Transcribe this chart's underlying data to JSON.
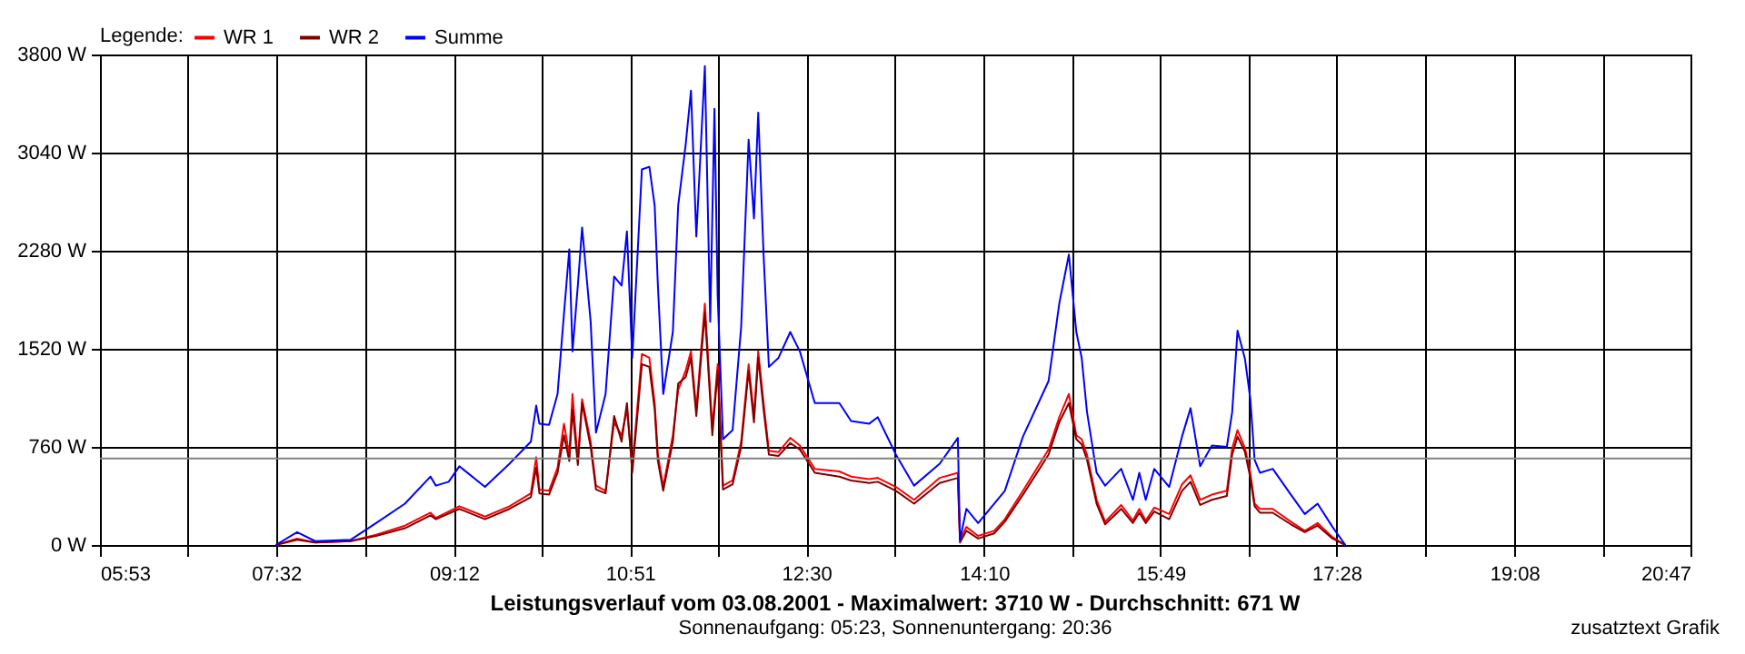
{
  "chart_data": {
    "type": "line",
    "title": "Leistungsverlauf vom 03.08.2001 - Maximalwert: 3710 W - Durchschnitt: 671 W",
    "subtitle": "Sonnenaufgang: 05:23, Sonnenuntergang: 20:36",
    "legend_title": "Legende:",
    "legend": "top left",
    "grid": true,
    "marker": "none",
    "line_style": "solid",
    "annotations": [
      "zusatztext Grafik"
    ],
    "xlim": [
      5.8833,
      20.7833
    ],
    "xticks": [
      {
        "value": 5.8833,
        "label": "05:53"
      },
      {
        "value": 6.7083,
        "label": null
      },
      {
        "value": 7.5333,
        "label": "07:32"
      },
      {
        "value": 8.3667,
        "label": null
      },
      {
        "value": 9.2,
        "label": "09:12"
      },
      {
        "value": 10.025,
        "label": null
      },
      {
        "value": 10.85,
        "label": "10:51"
      },
      {
        "value": 11.675,
        "label": null
      },
      {
        "value": 12.5,
        "label": "12:30"
      },
      {
        "value": 13.3333,
        "label": null
      },
      {
        "value": 14.1667,
        "label": "14:10"
      },
      {
        "value": 14.9917,
        "label": null
      },
      {
        "value": 15.8167,
        "label": "15:49"
      },
      {
        "value": 16.6417,
        "label": null
      },
      {
        "value": 17.4667,
        "label": "17:28"
      },
      {
        "value": 18.3,
        "label": null
      },
      {
        "value": 19.1333,
        "label": "19:08"
      },
      {
        "value": 19.9583,
        "label": null
      },
      {
        "value": 20.7833,
        "label": "20:47"
      }
    ],
    "ylim": [
      0,
      3800
    ],
    "yticks": [
      {
        "value": 0,
        "label": "0 W"
      },
      {
        "value": 760,
        "label": "760 W"
      },
      {
        "value": 1520,
        "label": "1520 W"
      },
      {
        "value": 2280,
        "label": "2280 W"
      },
      {
        "value": 3040,
        "label": "3040 W"
      },
      {
        "value": 3800,
        "label": "3800 W"
      }
    ],
    "ref_lines": [
      {
        "axis": "y",
        "value": 671,
        "color": "#808080"
      }
    ],
    "series": [
      {
        "name": "WR 1",
        "color": "#ff0000",
        "x": [
          7.53,
          7.73,
          7.9,
          8.23,
          8.47,
          8.74,
          8.98,
          9.03,
          9.25,
          9.49,
          9.72,
          9.92,
          9.97,
          10.0,
          10.09,
          10.17,
          10.23,
          10.28,
          10.31,
          10.36,
          10.4,
          10.48,
          10.53,
          10.62,
          10.7,
          10.77,
          10.82,
          10.87,
          10.96,
          11.03,
          11.08,
          11.11,
          11.16,
          11.25,
          11.3,
          11.37,
          11.42,
          11.47,
          11.55,
          11.62,
          11.67,
          11.72,
          11.81,
          11.89,
          11.96,
          12.01,
          12.05,
          12.1,
          12.15,
          12.24,
          12.35,
          12.44,
          12.58,
          12.81,
          12.92,
          13.09,
          13.17,
          13.34,
          13.51,
          13.75,
          13.92,
          13.94,
          14.0,
          14.11,
          14.26,
          14.36,
          14.53,
          14.77,
          14.87,
          14.96,
          15.03,
          15.08,
          15.13,
          15.22,
          15.3,
          15.45,
          15.56,
          15.62,
          15.68,
          15.76,
          15.9,
          16.02,
          16.1,
          16.19,
          16.3,
          16.44,
          16.49,
          16.54,
          16.61,
          16.66,
          16.7,
          16.75,
          16.87,
          17.04,
          17.17,
          17.29,
          17.43,
          17.55
        ],
        "values": [
          0,
          50,
          20,
          30,
          80,
          150,
          250,
          210,
          300,
          220,
          300,
          400,
          680,
          430,
          420,
          600,
          940,
          700,
          1170,
          650,
          1130,
          800,
          460,
          420,
          950,
          850,
          1050,
          600,
          1480,
          1450,
          1100,
          700,
          450,
          850,
          1200,
          1350,
          1500,
          1050,
          1870,
          900,
          1400,
          460,
          500,
          800,
          1400,
          1000,
          1500,
          1100,
          730,
          720,
          830,
          770,
          590,
          570,
          530,
          510,
          520,
          450,
          350,
          520,
          560,
          40,
          140,
          70,
          110,
          200,
          420,
          740,
          990,
          1170,
          850,
          820,
          700,
          350,
          180,
          310,
          190,
          280,
          190,
          290,
          240,
          470,
          540,
          350,
          390,
          420,
          750,
          890,
          750,
          560,
          320,
          280,
          280,
          180,
          110,
          170,
          60,
          0
        ]
      },
      {
        "name": "WR 2",
        "color": "#800000",
        "x": [
          7.53,
          7.73,
          7.9,
          8.23,
          8.47,
          8.74,
          8.98,
          9.03,
          9.25,
          9.49,
          9.72,
          9.92,
          9.97,
          10.0,
          10.09,
          10.17,
          10.23,
          10.28,
          10.31,
          10.36,
          10.4,
          10.48,
          10.53,
          10.62,
          10.7,
          10.77,
          10.82,
          10.87,
          10.96,
          11.03,
          11.08,
          11.11,
          11.16,
          11.25,
          11.3,
          11.37,
          11.42,
          11.47,
          11.55,
          11.62,
          11.67,
          11.72,
          11.81,
          11.89,
          11.96,
          12.01,
          12.05,
          12.1,
          12.15,
          12.24,
          12.35,
          12.44,
          12.58,
          12.81,
          12.92,
          13.09,
          13.17,
          13.34,
          13.51,
          13.75,
          13.92,
          13.94,
          14.0,
          14.11,
          14.26,
          14.36,
          14.53,
          14.77,
          14.87,
          14.96,
          15.03,
          15.08,
          15.13,
          15.22,
          15.3,
          15.45,
          15.56,
          15.62,
          15.68,
          15.76,
          15.9,
          16.02,
          16.1,
          16.19,
          16.3,
          16.44,
          16.49,
          16.54,
          16.61,
          16.66,
          16.7,
          16.75,
          16.87,
          17.04,
          17.17,
          17.29,
          17.43,
          17.55
        ],
        "values": [
          0,
          40,
          20,
          30,
          70,
          130,
          230,
          200,
          280,
          200,
          280,
          370,
          600,
          400,
          390,
          560,
          850,
          650,
          1050,
          620,
          1100,
          760,
          430,
          400,
          1000,
          800,
          1100,
          560,
          1400,
          1380,
          1050,
          650,
          420,
          800,
          1250,
          1300,
          1450,
          1000,
          1800,
          850,
          1350,
          430,
          470,
          760,
          1350,
          950,
          1450,
          1050,
          700,
          690,
          790,
          740,
          560,
          530,
          500,
          480,
          490,
          420,
          320,
          480,
          520,
          20,
          110,
          50,
          90,
          180,
          390,
          700,
          950,
          1100,
          820,
          780,
          660,
          320,
          160,
          280,
          170,
          250,
          170,
          260,
          200,
          420,
          490,
          310,
          350,
          380,
          700,
          840,
          720,
          520,
          300,
          250,
          250,
          160,
          100,
          150,
          50,
          0
        ]
      },
      {
        "name": "Summe",
        "color": "#0000ff",
        "x": [
          7.53,
          7.73,
          7.9,
          8.23,
          8.47,
          8.74,
          8.98,
          9.03,
          9.15,
          9.25,
          9.49,
          9.72,
          9.92,
          9.97,
          10.0,
          10.09,
          10.17,
          10.23,
          10.28,
          10.31,
          10.36,
          10.4,
          10.48,
          10.53,
          10.62,
          10.7,
          10.77,
          10.82,
          10.87,
          10.96,
          11.03,
          11.08,
          11.11,
          11.16,
          11.25,
          11.3,
          11.37,
          11.42,
          11.47,
          11.55,
          11.6,
          11.64,
          11.67,
          11.72,
          11.81,
          11.89,
          11.96,
          12.01,
          12.05,
          12.1,
          12.15,
          12.24,
          12.35,
          12.44,
          12.58,
          12.81,
          12.92,
          13.09,
          13.17,
          13.34,
          13.51,
          13.75,
          13.92,
          13.94,
          14.0,
          14.11,
          14.26,
          14.36,
          14.53,
          14.77,
          14.87,
          14.96,
          15.03,
          15.08,
          15.13,
          15.22,
          15.3,
          15.45,
          15.56,
          15.62,
          15.68,
          15.76,
          15.9,
          16.02,
          16.1,
          16.19,
          16.3,
          16.44,
          16.49,
          16.54,
          16.61,
          16.66,
          16.7,
          16.75,
          16.87,
          17.04,
          17.17,
          17.29,
          17.43,
          17.55
        ],
        "values": [
          0,
          100,
          30,
          40,
          170,
          320,
          530,
          460,
          490,
          610,
          450,
          630,
          800,
          1080,
          940,
          930,
          1170,
          1790,
          2290,
          1500,
          2010,
          2460,
          1730,
          870,
          1170,
          2080,
          2010,
          2430,
          1450,
          2910,
          2930,
          2630,
          2010,
          1170,
          1650,
          2630,
          3100,
          3520,
          2390,
          3710,
          1730,
          3380,
          1930,
          820,
          890,
          1690,
          3140,
          2530,
          3350,
          2250,
          1380,
          1450,
          1650,
          1500,
          1100,
          1100,
          960,
          940,
          990,
          700,
          460,
          630,
          830,
          40,
          280,
          170,
          320,
          420,
          840,
          1270,
          1870,
          2250,
          1650,
          1450,
          1030,
          560,
          460,
          590,
          350,
          560,
          350,
          590,
          450,
          840,
          1060,
          610,
          770,
          760,
          1030,
          1660,
          1440,
          1130,
          660,
          560,
          590,
          390,
          240,
          320,
          140,
          0
        ]
      }
    ]
  }
}
